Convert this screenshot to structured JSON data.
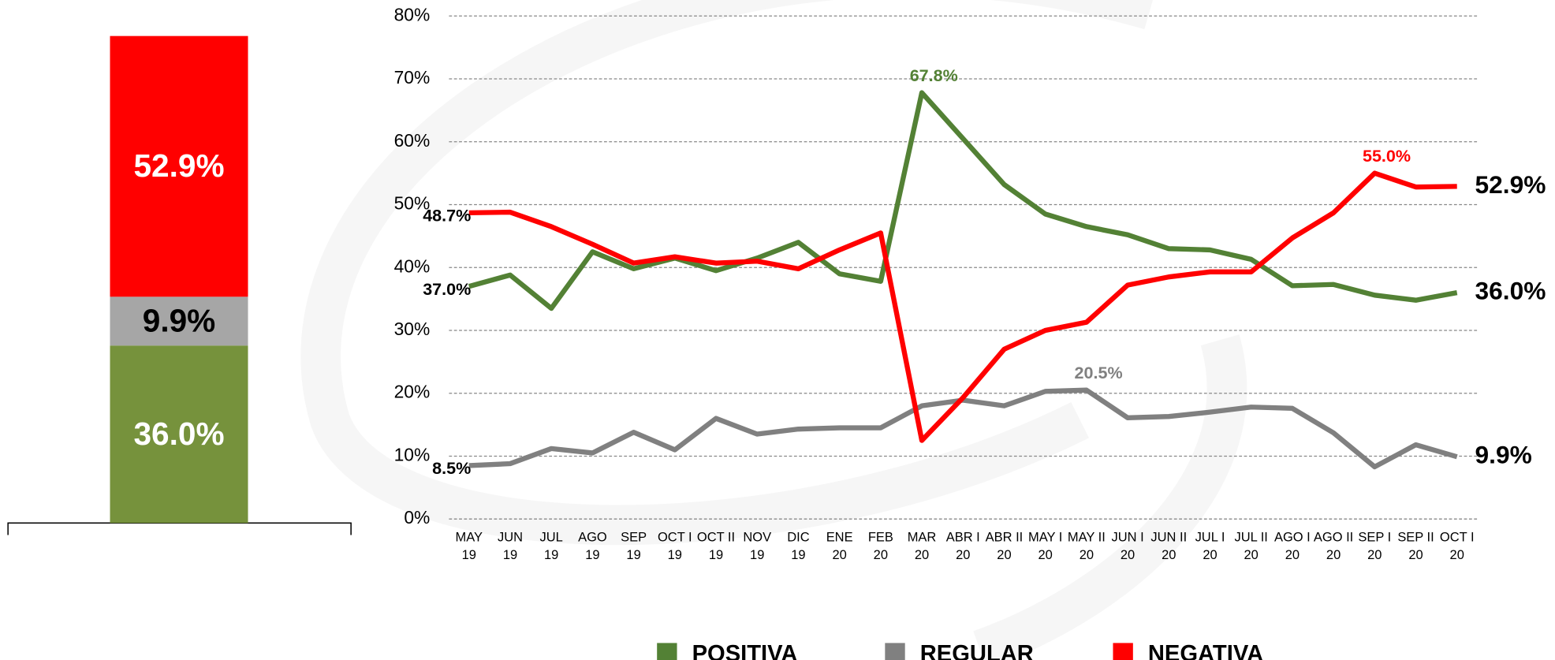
{
  "chart_data": [
    {
      "type": "stacked-bar",
      "categories": [
        null
      ],
      "series": [
        {
          "name": "POSITIVA",
          "color": "#76923c",
          "values": [
            36.0
          ],
          "value_labels": [
            "36.0%"
          ]
        },
        {
          "name": "REGULAR",
          "color": "#a6a6a6",
          "values": [
            9.9
          ],
          "value_labels": [
            "9.9%"
          ]
        },
        {
          "name": "NEGATIVA",
          "color": "#ff0000",
          "values": [
            52.9
          ],
          "value_labels": [
            "52.9%"
          ]
        }
      ],
      "ylim": [
        0,
        98.8
      ]
    },
    {
      "type": "line",
      "categories": [
        "MAY 19",
        "JUN 19",
        "JUL 19",
        "AGO 19",
        "SEP 19",
        "OCT I 19",
        "OCT II 19",
        "NOV 19",
        "DIC 19",
        "ENE 20",
        "FEB 20",
        "MAR 20",
        "ABR I 20",
        "ABR II 20",
        "MAY I 20",
        "MAY II 20",
        "JUN I 20",
        "JUN II 20",
        "JUL I 20",
        "JUL II 20",
        "AGO I 20",
        "AGO II 20",
        "SEP I 20",
        "SEP II 20",
        "OCT I 20"
      ],
      "series": [
        {
          "name": "POSITIVA",
          "color": "#538135",
          "values": [
            37.0,
            38.8,
            33.5,
            42.5,
            39.8,
            41.5,
            39.5,
            41.5,
            44.0,
            39.0,
            37.8,
            67.8,
            60.5,
            53.2,
            48.5,
            46.5,
            45.2,
            43.0,
            42.8,
            41.3,
            37.1,
            37.3,
            35.6,
            34.8,
            36.0
          ],
          "value_labels": [
            "37.0%",
            null,
            null,
            null,
            null,
            null,
            null,
            null,
            null,
            null,
            null,
            "67.8%",
            null,
            null,
            null,
            null,
            null,
            null,
            null,
            null,
            null,
            null,
            null,
            null,
            "36.0%"
          ]
        },
        {
          "name": "REGULAR",
          "color": "#808080",
          "values": [
            8.5,
            8.8,
            11.2,
            10.5,
            13.8,
            11.0,
            16.0,
            13.5,
            14.3,
            14.5,
            14.5,
            18.0,
            18.9,
            18.0,
            20.3,
            20.5,
            16.1,
            16.3,
            17.0,
            17.8,
            17.6,
            13.7,
            8.3,
            11.8,
            9.9
          ],
          "value_labels": [
            "8.5%",
            null,
            null,
            null,
            null,
            null,
            null,
            null,
            null,
            null,
            null,
            null,
            null,
            null,
            null,
            "20.5%",
            null,
            null,
            null,
            null,
            null,
            null,
            null,
            null,
            "9.9%"
          ]
        },
        {
          "name": "NEGATIVA",
          "color": "#ff0000",
          "values": [
            48.7,
            48.8,
            46.5,
            43.7,
            40.7,
            41.7,
            40.7,
            41.0,
            39.8,
            42.8,
            45.5,
            12.5,
            19.3,
            27.0,
            30.0,
            31.3,
            37.2,
            38.5,
            39.3,
            39.3,
            44.7,
            48.7,
            55.0,
            52.8,
            52.9
          ],
          "value_labels": [
            "48.7%",
            null,
            null,
            null,
            null,
            null,
            null,
            null,
            null,
            null,
            null,
            null,
            null,
            null,
            null,
            null,
            null,
            null,
            null,
            null,
            null,
            null,
            "55.0%",
            null,
            "52.9%"
          ]
        }
      ],
      "ylim": [
        0,
        80
      ],
      "yticks": [
        {
          "value": 0,
          "label": "0%"
        },
        {
          "value": 10,
          "label": "10%"
        },
        {
          "value": 20,
          "label": "20%"
        },
        {
          "value": 30,
          "label": "30%"
        },
        {
          "value": 40,
          "label": "40%"
        },
        {
          "value": 50,
          "label": "50%"
        },
        {
          "value": 60,
          "label": "60%"
        },
        {
          "value": 70,
          "label": "70%"
        },
        {
          "value": 80,
          "label": "80%"
        }
      ],
      "grid": true,
      "legend": "bottom"
    }
  ]
}
